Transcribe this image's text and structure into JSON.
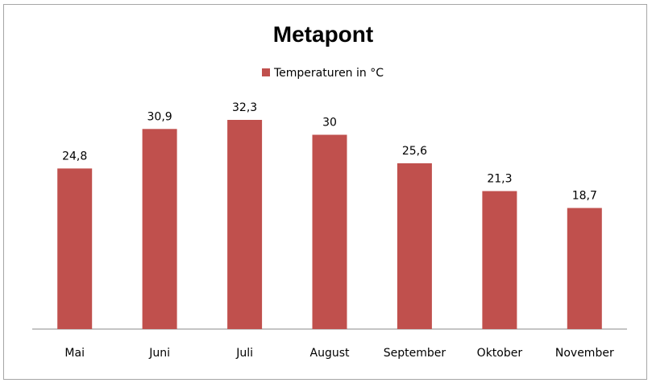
{
  "chart_data": {
    "type": "bar",
    "title": "Metapont",
    "categories": [
      "Mai",
      "Juni",
      "Juli",
      "August",
      "September",
      "Oktober",
      "November"
    ],
    "series": [
      {
        "name": "Temperaturen  in °C",
        "values": [
          24.8,
          30.9,
          32.3,
          30,
          25.6,
          21.3,
          18.7
        ],
        "labels": [
          "24,8",
          "30,9",
          "32,3",
          "30",
          "25,6",
          "21,3",
          "18,7"
        ],
        "color": "#c0504d"
      }
    ],
    "ylim": [
      0,
      40
    ],
    "grid": false,
    "legend_position": "top"
  }
}
